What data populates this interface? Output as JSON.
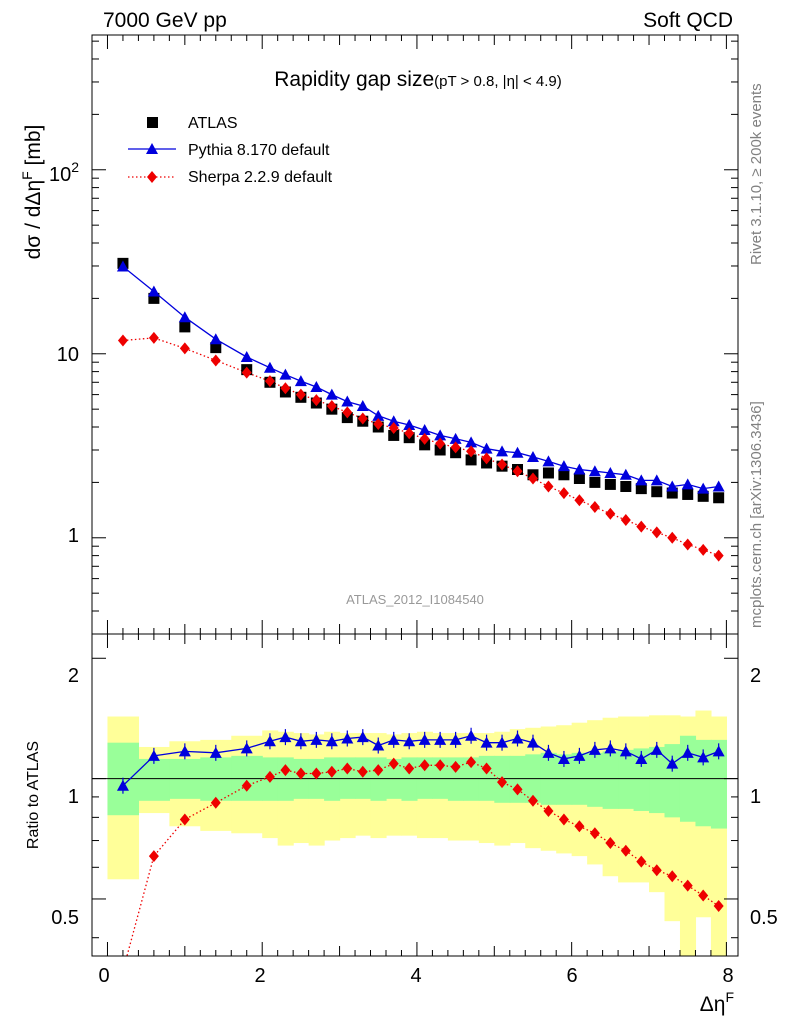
{
  "header": {
    "left": "7000 GeV pp",
    "right": "Soft QCD"
  },
  "side_text": {
    "rivet": "Rivet 3.1.10, ≥ 200k events",
    "mcplots": "mcplots.cern.ch [arXiv:1306.3436]"
  },
  "watermark": "ATLAS_2012_I1084540",
  "title": {
    "main": "Rapidity gap size",
    "cuts": "(pT > 0.8, |η| < 4.9)"
  },
  "colors": {
    "pythia": "#0000dd",
    "sherpa": "#ee0000",
    "atlas": "#000000",
    "band_inner": "#99ff99",
    "band_outer": "#ffff99"
  },
  "chart_data": [
    {
      "type": "scatter",
      "panel": "main",
      "ylabel": "dσ / dΔηF [mb]",
      "yscale": "log",
      "xlim": [
        -0.2,
        8.15
      ],
      "ylim": [
        0.3,
        540
      ],
      "ytick_labels": [
        "1",
        "10",
        "10^2"
      ],
      "legend_position": "top-left",
      "series": [
        {
          "name": "ATLAS",
          "marker": "square",
          "x": [
            0.2,
            0.6,
            1.0,
            1.4,
            1.8,
            2.1,
            2.3,
            2.5,
            2.7,
            2.9,
            3.1,
            3.3,
            3.5,
            3.7,
            3.9,
            4.1,
            4.3,
            4.5,
            4.7,
            4.9,
            5.1,
            5.3,
            5.5,
            5.7,
            5.9,
            6.1,
            6.3,
            6.5,
            6.7,
            6.9,
            7.1,
            7.3,
            7.5,
            7.7,
            7.9
          ],
          "values": [
            31,
            20,
            14,
            10.8,
            8.2,
            7.0,
            6.2,
            5.8,
            5.4,
            5.0,
            4.5,
            4.3,
            4.0,
            3.6,
            3.5,
            3.2,
            3.0,
            2.9,
            2.65,
            2.55,
            2.45,
            2.35,
            2.2,
            2.25,
            2.2,
            2.1,
            2.0,
            1.95,
            1.9,
            1.85,
            1.78,
            1.75,
            1.72,
            1.68,
            1.65
          ]
        },
        {
          "name": "Pythia 8.170 default",
          "marker": "triangle",
          "line": "solid",
          "x": [
            0.2,
            0.6,
            1.0,
            1.4,
            1.8,
            2.1,
            2.3,
            2.5,
            2.7,
            2.9,
            3.1,
            3.3,
            3.5,
            3.7,
            3.9,
            4.1,
            4.3,
            4.5,
            4.7,
            4.9,
            5.1,
            5.3,
            5.5,
            5.7,
            5.9,
            6.1,
            6.3,
            6.5,
            6.7,
            6.9,
            7.1,
            7.3,
            7.5,
            7.7,
            7.9
          ],
          "values": [
            29.8,
            21.8,
            15.8,
            12.0,
            9.6,
            8.4,
            7.7,
            7.1,
            6.6,
            6.0,
            5.5,
            5.2,
            4.6,
            4.3,
            4.1,
            3.85,
            3.6,
            3.45,
            3.3,
            3.05,
            2.95,
            2.9,
            2.75,
            2.6,
            2.45,
            2.35,
            2.3,
            2.25,
            2.2,
            2.05,
            2.05,
            1.9,
            1.95,
            1.85,
            1.9
          ]
        },
        {
          "name": "Sherpa 2.2.9 default",
          "marker": "diamond",
          "line": "dotted",
          "x": [
            0.2,
            0.6,
            1.0,
            1.4,
            1.8,
            2.1,
            2.3,
            2.5,
            2.7,
            2.9,
            3.1,
            3.3,
            3.5,
            3.7,
            3.9,
            4.1,
            4.3,
            4.5,
            4.7,
            4.9,
            5.1,
            5.3,
            5.5,
            5.7,
            5.9,
            6.1,
            6.3,
            6.5,
            6.7,
            6.9,
            7.1,
            7.3,
            7.5,
            7.7,
            7.9
          ],
          "values": [
            11.8,
            12.2,
            10.7,
            9.2,
            7.9,
            7.1,
            6.5,
            6.0,
            5.6,
            5.2,
            4.8,
            4.45,
            4.15,
            3.95,
            3.7,
            3.45,
            3.25,
            3.1,
            2.95,
            2.7,
            2.5,
            2.3,
            2.1,
            1.9,
            1.75,
            1.6,
            1.47,
            1.35,
            1.25,
            1.15,
            1.07,
            1.0,
            0.92,
            0.86,
            0.8
          ]
        }
      ]
    },
    {
      "type": "line",
      "panel": "ratio",
      "ylabel": "Ratio to ATLAS",
      "xlabel": "ΔηF",
      "xlim": [
        -0.2,
        8.15
      ],
      "ylim": [
        0.36,
        2.3
      ],
      "xtick_labels": [
        "0",
        "2",
        "4",
        "6",
        "8"
      ],
      "ytick_labels": [
        "0.5",
        "1",
        "2"
      ],
      "reference_line": 1.0,
      "bands": {
        "x_edges": [
          0.0,
          0.4,
          0.8,
          1.2,
          1.6,
          2.0,
          2.2,
          2.4,
          2.6,
          2.8,
          3.0,
          3.2,
          3.4,
          3.6,
          3.8,
          4.0,
          4.2,
          4.4,
          4.6,
          4.8,
          5.0,
          5.2,
          5.4,
          5.6,
          5.8,
          6.0,
          6.2,
          6.4,
          6.6,
          6.8,
          7.0,
          7.2,
          7.4,
          7.6,
          7.8,
          8.0
        ],
        "inner_low": [
          0.81,
          0.88,
          0.89,
          0.88,
          0.88,
          0.88,
          0.88,
          0.89,
          0.89,
          0.88,
          0.89,
          0.89,
          0.88,
          0.89,
          0.88,
          0.89,
          0.89,
          0.88,
          0.88,
          0.88,
          0.87,
          0.87,
          0.87,
          0.86,
          0.86,
          0.86,
          0.85,
          0.84,
          0.84,
          0.83,
          0.82,
          0.8,
          0.78,
          0.76,
          0.75
        ],
        "inner_high": [
          1.23,
          1.12,
          1.12,
          1.13,
          1.14,
          1.13,
          1.13,
          1.12,
          1.12,
          1.13,
          1.13,
          1.13,
          1.13,
          1.12,
          1.13,
          1.13,
          1.13,
          1.13,
          1.13,
          1.14,
          1.14,
          1.14,
          1.15,
          1.16,
          1.15,
          1.16,
          1.16,
          1.17,
          1.18,
          1.19,
          1.2,
          1.22,
          1.28,
          1.25,
          1.25
        ],
        "outer_low": [
          0.56,
          0.82,
          0.76,
          0.74,
          0.73,
          0.71,
          0.68,
          0.69,
          0.68,
          0.7,
          0.71,
          0.72,
          0.71,
          0.72,
          0.72,
          0.71,
          0.71,
          0.7,
          0.7,
          0.69,
          0.68,
          0.69,
          0.67,
          0.66,
          0.65,
          0.64,
          0.61,
          0.57,
          0.55,
          0.55,
          0.52,
          0.44,
          0.33,
          0.45,
          0.33
        ],
        "outer_high": [
          1.43,
          1.2,
          1.24,
          1.25,
          1.28,
          1.32,
          1.31,
          1.3,
          1.29,
          1.31,
          1.3,
          1.3,
          1.3,
          1.29,
          1.3,
          1.31,
          1.3,
          1.3,
          1.3,
          1.3,
          1.31,
          1.33,
          1.34,
          1.35,
          1.36,
          1.38,
          1.4,
          1.42,
          1.43,
          1.43,
          1.44,
          1.44,
          1.43,
          1.48,
          1.43
        ]
      },
      "series": [
        {
          "name": "Pythia 8.170 default",
          "x": [
            0.2,
            0.6,
            1.0,
            1.4,
            1.8,
            2.1,
            2.3,
            2.5,
            2.7,
            2.9,
            3.1,
            3.3,
            3.5,
            3.7,
            3.9,
            4.1,
            4.3,
            4.5,
            4.7,
            4.9,
            5.1,
            5.3,
            5.5,
            5.7,
            5.9,
            6.1,
            6.3,
            6.5,
            6.7,
            6.9,
            7.1,
            7.3,
            7.5,
            7.7,
            7.9
          ],
          "values": [
            0.96,
            1.14,
            1.17,
            1.16,
            1.19,
            1.24,
            1.27,
            1.24,
            1.25,
            1.24,
            1.26,
            1.27,
            1.21,
            1.25,
            1.24,
            1.25,
            1.25,
            1.25,
            1.28,
            1.23,
            1.23,
            1.26,
            1.23,
            1.16,
            1.12,
            1.14,
            1.18,
            1.19,
            1.17,
            1.12,
            1.18,
            1.09,
            1.16,
            1.13,
            1.17
          ]
        },
        {
          "name": "Sherpa 2.2.9 default",
          "x": [
            0.2,
            0.6,
            1.0,
            1.4,
            1.8,
            2.1,
            2.3,
            2.5,
            2.7,
            2.9,
            3.1,
            3.3,
            3.5,
            3.7,
            3.9,
            4.1,
            4.3,
            4.5,
            4.7,
            4.9,
            5.1,
            5.3,
            5.5,
            5.7,
            5.9,
            6.1,
            6.3,
            6.5,
            6.7,
            6.9,
            7.1,
            7.3,
            7.5,
            7.7,
            7.9
          ],
          "values": [
            0.33,
            0.64,
            0.79,
            0.87,
            0.96,
            1.01,
            1.05,
            1.03,
            1.03,
            1.04,
            1.06,
            1.04,
            1.05,
            1.09,
            1.06,
            1.08,
            1.08,
            1.07,
            1.1,
            1.06,
            0.98,
            0.94,
            0.88,
            0.83,
            0.79,
            0.76,
            0.73,
            0.69,
            0.66,
            0.62,
            0.59,
            0.57,
            0.54,
            0.51,
            0.48
          ]
        }
      ]
    }
  ]
}
